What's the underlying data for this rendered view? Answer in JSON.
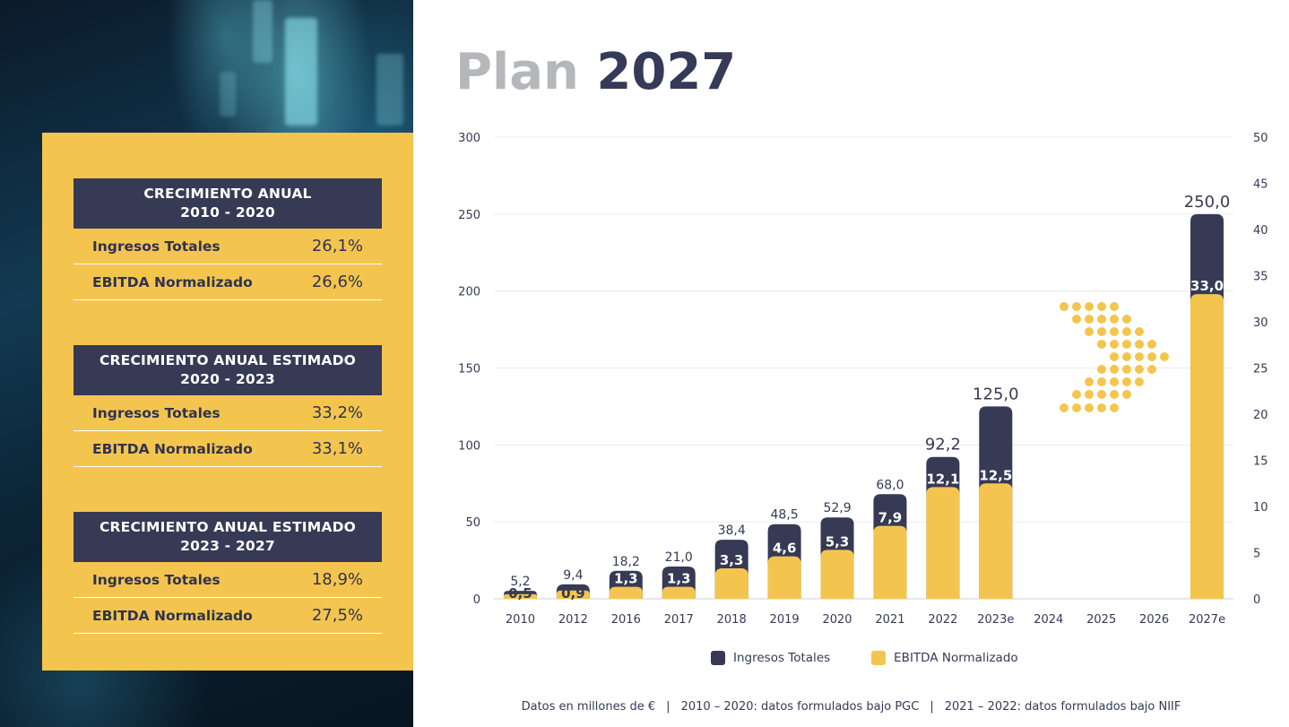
{
  "title": {
    "light": "Plan",
    "dark": "2027"
  },
  "colors": {
    "navy": "#363a55",
    "yellow": "#f4c54e",
    "grey": "#b6b7bb"
  },
  "growth_blocks": [
    {
      "heading_line1": "CRECIMIENTO ANUAL",
      "heading_line2": "2010 - 2020",
      "rows": [
        {
          "label": "Ingresos Totales",
          "value": "26,1%"
        },
        {
          "label": "EBITDA Normalizado",
          "value": "26,6%"
        }
      ]
    },
    {
      "heading_line1": "CRECIMIENTO ANUAL ESTIMADO",
      "heading_line2": "2020 - 2023",
      "rows": [
        {
          "label": "Ingresos Totales",
          "value": "33,2%"
        },
        {
          "label": "EBITDA Normalizado",
          "value": "33,1%"
        }
      ]
    },
    {
      "heading_line1": "CRECIMIENTO ANUAL ESTIMADO",
      "heading_line2": "2023 - 2027",
      "rows": [
        {
          "label": "Ingresos Totales",
          "value": "18,9%"
        },
        {
          "label": "EBITDA Normalizado",
          "value": "27,5%"
        }
      ]
    }
  ],
  "chart_data": {
    "type": "bar",
    "categories": [
      "2010",
      "2012",
      "2016",
      "2017",
      "2018",
      "2019",
      "2020",
      "2021",
      "2022",
      "2023e",
      "2024",
      "2025",
      "2026",
      "2027e"
    ],
    "series": [
      {
        "name": "Ingresos Totales",
        "axis": "left",
        "values": [
          5.2,
          9.4,
          18.2,
          21.0,
          38.4,
          48.5,
          52.9,
          68.0,
          92.2,
          125.0,
          null,
          null,
          null,
          250.0
        ],
        "labels": [
          "5,2",
          "9,4",
          "18,2",
          "21,0",
          "38,4",
          "48,5",
          "52,9",
          "68,0",
          "92,2",
          "125,0",
          "",
          "",
          "",
          "250,0"
        ]
      },
      {
        "name": "EBITDA Normalizado",
        "axis": "right",
        "values": [
          0.5,
          0.9,
          1.3,
          1.3,
          3.3,
          4.6,
          5.3,
          7.9,
          12.1,
          12.5,
          null,
          null,
          null,
          33.0
        ],
        "labels": [
          "0,5",
          "0,9",
          "1,3",
          "1,3",
          "3,3",
          "4,6",
          "5,3",
          "7,9",
          "12,1",
          "12,5",
          "",
          "",
          "",
          "33,0"
        ]
      }
    ],
    "y_left": {
      "range": [
        0,
        300
      ],
      "ticks": [
        "0",
        "50",
        "100",
        "150",
        "200",
        "250",
        "300"
      ]
    },
    "y_right": {
      "range": [
        0,
        50
      ],
      "ticks": [
        "0",
        "5",
        "10",
        "15",
        "20",
        "25",
        "30",
        "35",
        "40",
        "45",
        "50"
      ]
    },
    "grid": true,
    "legend_position": "bottom"
  },
  "legend": [
    {
      "label": "Ingresos Totales",
      "color": "#363a55"
    },
    {
      "label": "EBITDA Normalizado",
      "color": "#f4c54e"
    }
  ],
  "footer": {
    "part1": "Datos en millones de €",
    "sep": "|",
    "part2": "2010 – 2020: datos formulados bajo PGC",
    "part3": "2021 – 2022: datos formulados bajo NIIF"
  }
}
